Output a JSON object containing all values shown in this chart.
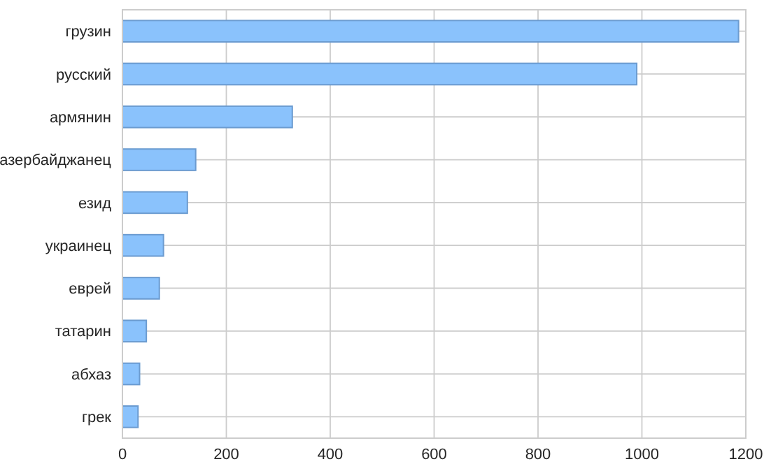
{
  "chart_data": {
    "type": "bar",
    "orientation": "horizontal",
    "categories": [
      "грузин",
      "русский",
      "армянин",
      "азербайджанец",
      "езид",
      "украинец",
      "еврей",
      "татарин",
      "абхаз",
      "грек"
    ],
    "values": [
      1186,
      990,
      327,
      141,
      125,
      79,
      71,
      46,
      33,
      30
    ],
    "color": "#8ac2fc",
    "xlim": [
      0,
      1200
    ],
    "xticks": [
      0,
      200,
      400,
      600,
      800,
      1000,
      1200
    ],
    "grid": true
  }
}
